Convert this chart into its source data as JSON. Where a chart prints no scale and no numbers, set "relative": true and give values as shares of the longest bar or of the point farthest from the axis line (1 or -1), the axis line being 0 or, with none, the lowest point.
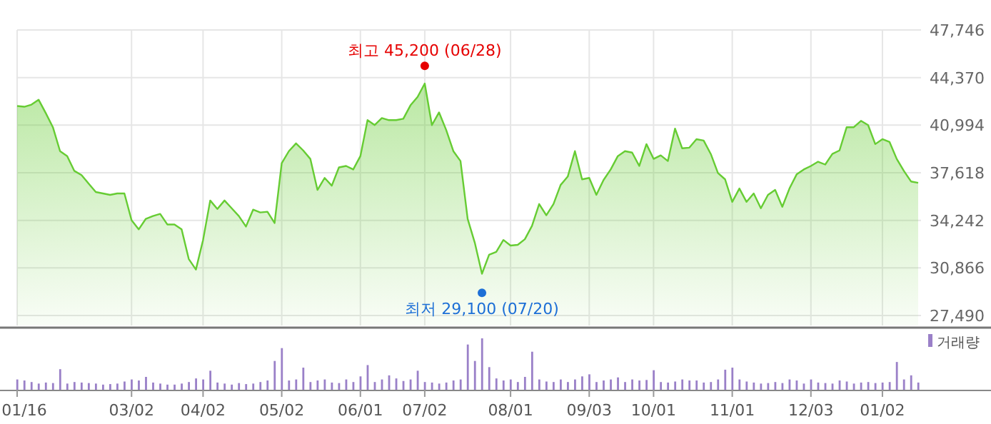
{
  "chart_data": [
    {
      "type": "area",
      "color": "#66cc33",
      "categories": [
        null,
        null,
        null,
        null,
        null,
        null,
        null,
        null,
        null,
        null,
        null,
        null,
        null,
        null,
        null,
        null,
        null,
        null,
        null,
        null,
        null,
        null,
        null,
        null,
        null,
        null,
        null,
        null,
        null,
        null,
        null,
        null,
        null,
        null,
        null,
        null,
        null,
        null,
        null,
        null,
        null,
        null,
        null,
        null,
        null,
        null,
        null,
        null,
        null,
        null,
        null,
        null,
        null,
        null,
        null,
        null,
        null,
        null,
        null,
        null,
        null,
        null,
        null,
        null,
        null,
        null,
        null,
        null,
        null,
        null,
        null,
        null,
        null,
        null,
        null,
        null,
        null,
        null,
        null,
        null,
        null,
        null,
        null,
        null,
        null,
        null,
        null,
        null,
        null,
        null,
        null,
        null,
        null,
        null,
        null,
        null,
        null,
        null,
        null,
        null,
        null,
        null,
        null,
        null,
        null,
        null,
        null,
        null,
        null,
        null,
        null,
        null,
        null,
        null,
        null,
        null,
        null,
        null,
        null,
        null,
        null,
        null,
        null,
        null,
        null,
        null,
        null
      ],
      "values": [
        42350,
        42300,
        42450,
        42800,
        41850,
        40850,
        39150,
        38800,
        37750,
        37450,
        36850,
        36250,
        36150,
        36050,
        36150,
        36150,
        34250,
        33600,
        34350,
        34550,
        34700,
        33950,
        33950,
        33600,
        31500,
        30750,
        32850,
        35650,
        35050,
        35650,
        35100,
        34550,
        33800,
        35000,
        34800,
        34850,
        34050,
        38300,
        39150,
        39700,
        39200,
        38600,
        36400,
        37250,
        36700,
        38000,
        38100,
        37850,
        38800,
        41350,
        41000,
        41500,
        41350,
        41350,
        41450,
        42400,
        43000,
        43950,
        41000,
        41900,
        40650,
        39150,
        38450,
        34350,
        32650,
        30450,
        31800,
        32000,
        32850,
        32450,
        32500,
        32900,
        33850,
        35400,
        34600,
        35400,
        36750,
        37350,
        39150,
        37150,
        37250,
        36050,
        37100,
        37850,
        38800,
        39150,
        39050,
        38100,
        39650,
        38600,
        38850,
        38450,
        40750,
        39350,
        39400,
        40000,
        39900,
        38950,
        37600,
        37150,
        35550,
        36500,
        35550,
        36150,
        35100,
        36050,
        36400,
        35200,
        36500,
        37500,
        37850,
        38100,
        38400,
        38200,
        38950,
        39200,
        40850,
        40850,
        41300,
        41000,
        39650,
        40000,
        39800,
        38600,
        37750,
        37000,
        36900
      ],
      "ylim": [
        27490,
        47746
      ],
      "yticks": [
        {
          "value": 27490,
          "label": "27,490"
        },
        {
          "value": 30866,
          "label": "30,866"
        },
        {
          "value": 34242,
          "label": "34,242"
        },
        {
          "value": 37618,
          "label": "37,618"
        },
        {
          "value": 40994,
          "label": "40,994"
        },
        {
          "value": 44370,
          "label": "44,370"
        },
        {
          "value": 47746,
          "label": "47,746"
        }
      ],
      "grid": true,
      "tick_labels": "y",
      "annotations": [
        {
          "text": "최고 45,200 (06/28)",
          "y": 45200
        },
        {
          "text": "최저 29,100 (07/20)",
          "y": 29100
        }
      ]
    },
    {
      "type": "bar",
      "relative": true,
      "legend": "top right",
      "tick_labels": "x",
      "categories": [
        "01/16",
        null,
        null,
        null,
        null,
        null,
        null,
        null,
        null,
        null,
        null,
        null,
        null,
        null,
        null,
        null,
        "03/02",
        null,
        null,
        null,
        null,
        null,
        null,
        null,
        null,
        null,
        "04/02",
        null,
        null,
        null,
        null,
        null,
        null,
        null,
        null,
        null,
        null,
        "05/02",
        null,
        null,
        null,
        null,
        null,
        null,
        null,
        null,
        null,
        null,
        "06/01",
        null,
        null,
        null,
        null,
        null,
        null,
        null,
        null,
        "07/02",
        null,
        null,
        null,
        null,
        null,
        null,
        null,
        null,
        null,
        null,
        null,
        "08/01",
        null,
        null,
        null,
        null,
        null,
        null,
        null,
        null,
        null,
        null,
        "09/03",
        null,
        null,
        null,
        null,
        null,
        null,
        null,
        null,
        "10/01",
        null,
        null,
        null,
        null,
        null,
        null,
        null,
        null,
        null,
        null,
        "11/01",
        null,
        null,
        null,
        null,
        null,
        null,
        null,
        null,
        null,
        null,
        "12/03",
        null,
        null,
        null,
        null,
        null,
        null,
        null,
        null,
        null,
        "01/02",
        null,
        null,
        null,
        null,
        null
      ],
      "series": [
        {
          "name": "거래량",
          "color": "#9a80c8",
          "values": [
            0.2,
            0.18,
            0.15,
            0.12,
            0.14,
            0.13,
            0.4,
            0.12,
            0.15,
            0.14,
            0.13,
            0.12,
            0.1,
            0.11,
            0.12,
            0.16,
            0.2,
            0.18,
            0.25,
            0.14,
            0.12,
            0.1,
            0.1,
            0.12,
            0.15,
            0.22,
            0.2,
            0.37,
            0.14,
            0.12,
            0.1,
            0.13,
            0.11,
            0.12,
            0.15,
            0.18,
            0.56,
            0.81,
            0.18,
            0.2,
            0.43,
            0.15,
            0.18,
            0.2,
            0.14,
            0.13,
            0.2,
            0.15,
            0.26,
            0.48,
            0.15,
            0.2,
            0.28,
            0.22,
            0.17,
            0.2,
            0.37,
            0.15,
            0.14,
            0.12,
            0.14,
            0.18,
            0.2,
            0.88,
            0.56,
            1,
            0.44,
            0.22,
            0.18,
            0.2,
            0.15,
            0.25,
            0.74,
            0.2,
            0.16,
            0.15,
            0.2,
            0.15,
            0.2,
            0.26,
            0.3,
            0.15,
            0.18,
            0.2,
            0.24,
            0.15,
            0.2,
            0.18,
            0.19,
            0.38,
            0.15,
            0.14,
            0.16,
            0.2,
            0.18,
            0.18,
            0.14,
            0.15,
            0.2,
            0.39,
            0.43,
            0.2,
            0.16,
            0.14,
            0.12,
            0.13,
            0.15,
            0.13,
            0.2,
            0.18,
            0.12,
            0.2,
            0.14,
            0.13,
            0.12,
            0.18,
            0.16,
            0.12,
            0.14,
            0.15,
            0.13,
            0.14,
            0.15,
            0.54,
            0.2,
            0.28,
            0.14
          ]
        }
      ]
    }
  ]
}
